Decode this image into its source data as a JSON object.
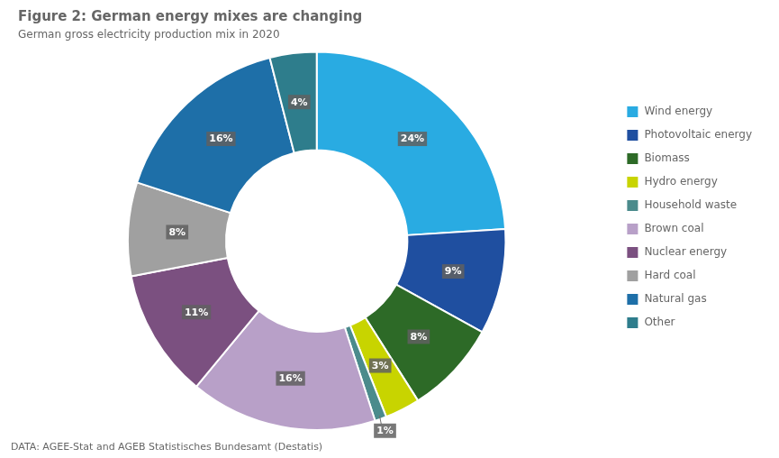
{
  "chart_data": {
    "type": "doughnut",
    "title": "Figure 2: German energy mixes are changing",
    "subtitle": "German gross electricity production mix in 2020",
    "footnote": "DATA: AGEE-Stat and AGEB Statistisches Bundesamt (Destatis)",
    "categories": [
      "Wind energy",
      "Photovoltaic energy",
      "Biomass",
      "Hydro energy",
      "Household waste",
      "Brown coal",
      "Nuclear energy",
      "Hard coal",
      "Natural gas",
      "Other"
    ],
    "values": [
      24,
      9,
      8,
      3,
      1,
      16,
      11,
      8,
      16,
      4
    ],
    "value_labels": [
      "24%",
      "9%",
      "8%",
      "3%",
      "1%",
      "16%",
      "11%",
      "8%",
      "16%",
      "4%"
    ],
    "colors": [
      "#29ABE2",
      "#1F4FA0",
      "#2D6A27",
      "#C8D400",
      "#4B8B8C",
      "#B8A0C8",
      "#7B5080",
      "#A0A0A0",
      "#1E6FA8",
      "#2E7D8C"
    ],
    "data_labels": true,
    "legend": "right"
  }
}
